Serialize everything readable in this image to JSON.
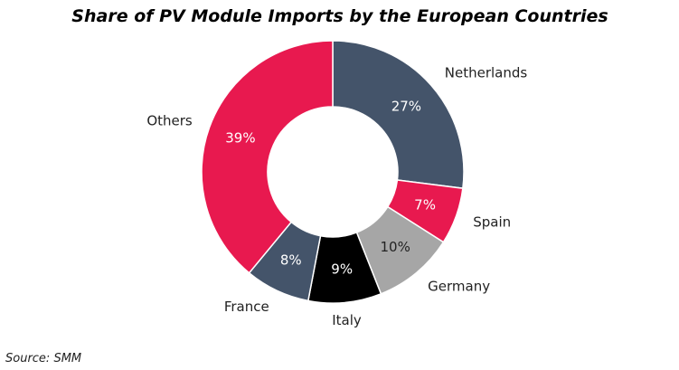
{
  "chart_data": {
    "type": "pie",
    "title": "Share of PV Module Imports by the European Countries",
    "categories": [
      "Netherlands",
      "Spain",
      "Germany",
      "Italy",
      "France",
      "Others"
    ],
    "values": [
      27,
      7,
      10,
      9,
      8,
      39
    ],
    "value_labels": [
      "27%",
      "7%",
      "10%",
      "9%",
      "8%",
      "39%"
    ],
    "colors": [
      "#44546a",
      "#e8194f",
      "#a6a6a6",
      "#000000",
      "#44546a",
      "#e8194f"
    ],
    "donut": true
  },
  "source": "Source: SMM"
}
